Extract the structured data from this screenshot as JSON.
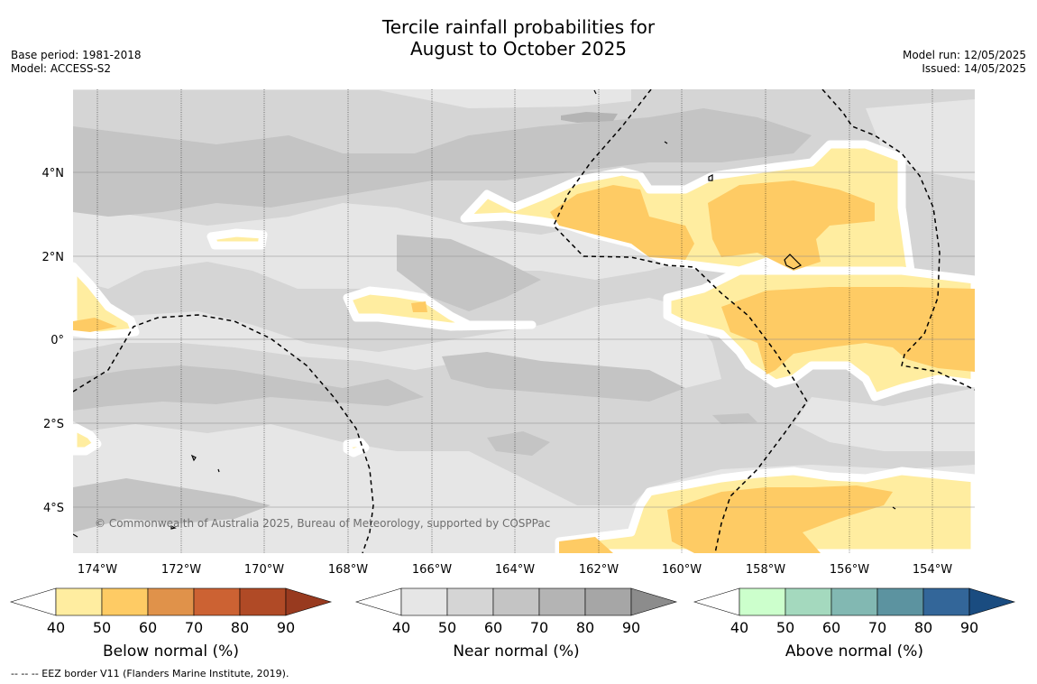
{
  "title_line1": "Tercile rainfall probabilities for",
  "title_line2": "August to October 2025",
  "base_period": "Base period: 1981-2018",
  "model": "Model: ACCESS-S2",
  "model_run": "Model run: 12/05/2025",
  "issued": "Issued: 14/05/2025",
  "copyright": "© Commonwealth of Australia 2025, Bureau of Meteorology, supported by COSPPac",
  "footnote": "--  --  -- EEZ border V11 (Flanders Marine Institute, 2019).",
  "lon_labels": [
    "174°W",
    "172°W",
    "170°W",
    "168°W",
    "166°W",
    "164°W",
    "162°W",
    "160°W",
    "158°W",
    "156°W",
    "154°W"
  ],
  "lat_labels": [
    "4°N",
    "2°N",
    "0°",
    "2°S",
    "4°S"
  ],
  "colorbars": [
    {
      "label": "Below normal (%)",
      "ticks": [
        "40",
        "50",
        "60",
        "70",
        "80",
        "90"
      ],
      "colors": [
        "#ffffff",
        "#ffeda0",
        "#fecb64",
        "#e0924a",
        "#cc6233",
        "#b04a26",
        "#983a1f"
      ]
    },
    {
      "label": "Near normal (%)",
      "ticks": [
        "40",
        "50",
        "60",
        "70",
        "80",
        "90"
      ],
      "colors": [
        "#ffffff",
        "#e6e6e6",
        "#d5d5d5",
        "#c4c4c4",
        "#b4b4b4",
        "#a6a6a6",
        "#8c8c8c"
      ]
    },
    {
      "label": "Above normal (%)",
      "ticks": [
        "40",
        "50",
        "60",
        "70",
        "80",
        "90"
      ],
      "colors": [
        "#ffffff",
        "#ccffcc",
        "#a4d9be",
        "#82b8b2",
        "#5c93a0",
        "#336699",
        "#1a4c80"
      ]
    }
  ]
}
